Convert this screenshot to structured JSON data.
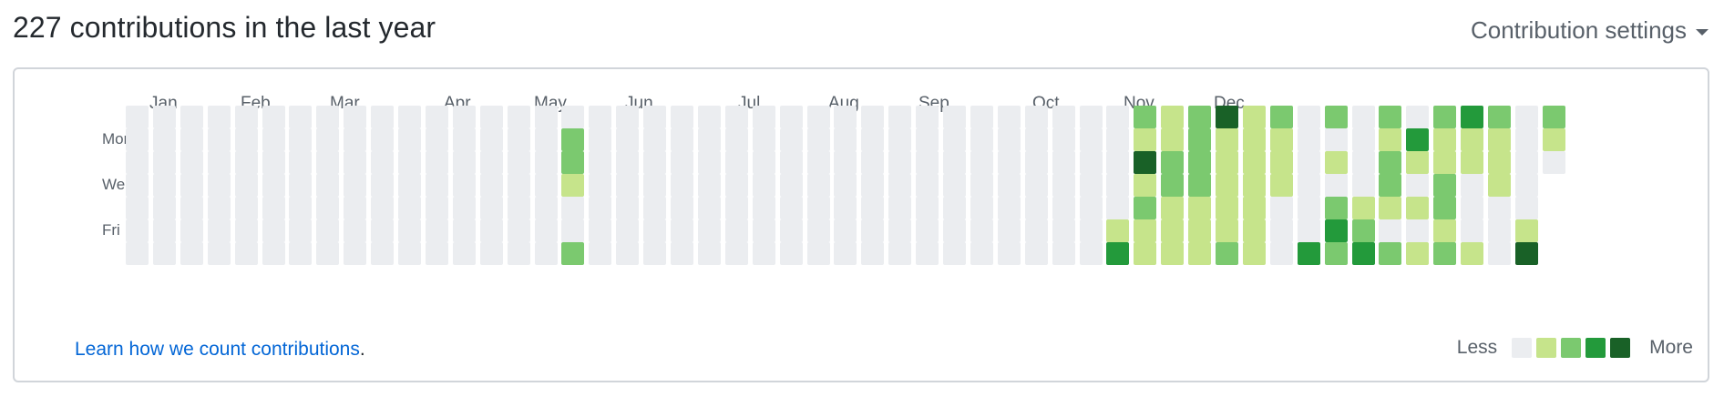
{
  "header": {
    "title": "227 contributions in the last year",
    "settings_label": "Contribution settings"
  },
  "calendar": {
    "months": [
      "Jan",
      "Feb",
      "Mar",
      "Apr",
      "May",
      "Jun",
      "Jul",
      "Aug",
      "Sep",
      "Oct",
      "Nov",
      "Dec"
    ],
    "day_labels": [
      "Mon",
      "Wed",
      "Fri"
    ],
    "level_colors": [
      "#ebedf0",
      "#c6e48b",
      "#7bc96f",
      "#239a3b",
      "#196127"
    ],
    "weeks": [
      [
        0,
        0,
        0,
        0,
        0,
        0,
        0
      ],
      [
        0,
        0,
        0,
        0,
        0,
        0,
        0
      ],
      [
        0,
        0,
        0,
        0,
        0,
        0,
        0
      ],
      [
        0,
        0,
        0,
        0,
        0,
        0,
        0
      ],
      [
        0,
        0,
        0,
        0,
        0,
        0,
        0
      ],
      [
        0,
        0,
        0,
        0,
        0,
        0,
        0
      ],
      [
        0,
        0,
        0,
        0,
        0,
        0,
        0
      ],
      [
        0,
        0,
        0,
        0,
        0,
        0,
        0
      ],
      [
        0,
        0,
        0,
        0,
        0,
        0,
        0
      ],
      [
        0,
        0,
        0,
        0,
        0,
        0,
        0
      ],
      [
        0,
        0,
        0,
        0,
        0,
        0,
        0
      ],
      [
        0,
        0,
        0,
        0,
        0,
        0,
        0
      ],
      [
        0,
        0,
        0,
        0,
        0,
        0,
        0
      ],
      [
        0,
        0,
        0,
        0,
        0,
        0,
        0
      ],
      [
        0,
        0,
        0,
        0,
        0,
        0,
        0
      ],
      [
        0,
        0,
        0,
        0,
        0,
        0,
        0
      ],
      [
        0,
        2,
        2,
        1,
        0,
        0,
        2
      ],
      [
        0,
        0,
        0,
        0,
        0,
        0,
        0
      ],
      [
        0,
        0,
        0,
        0,
        0,
        0,
        0
      ],
      [
        0,
        0,
        0,
        0,
        0,
        0,
        0
      ],
      [
        0,
        0,
        0,
        0,
        0,
        0,
        0
      ],
      [
        0,
        0,
        0,
        0,
        0,
        0,
        0
      ],
      [
        0,
        0,
        0,
        0,
        0,
        0,
        0
      ],
      [
        0,
        0,
        0,
        0,
        0,
        0,
        0
      ],
      [
        0,
        0,
        0,
        0,
        0,
        0,
        0
      ],
      [
        0,
        0,
        0,
        0,
        0,
        0,
        0
      ],
      [
        0,
        0,
        0,
        0,
        0,
        0,
        0
      ],
      [
        0,
        0,
        0,
        0,
        0,
        0,
        0
      ],
      [
        0,
        0,
        0,
        0,
        0,
        0,
        0
      ],
      [
        0,
        0,
        0,
        0,
        0,
        0,
        0
      ],
      [
        0,
        0,
        0,
        0,
        0,
        0,
        0
      ],
      [
        0,
        0,
        0,
        0,
        0,
        0,
        0
      ],
      [
        0,
        0,
        0,
        0,
        0,
        0,
        0
      ],
      [
        0,
        0,
        0,
        0,
        0,
        0,
        0
      ],
      [
        0,
        0,
        0,
        0,
        0,
        0,
        0
      ],
      [
        0,
        0,
        0,
        0,
        0,
        0,
        0
      ],
      [
        0,
        0,
        0,
        0,
        0,
        1,
        3
      ],
      [
        2,
        1,
        4,
        1,
        2,
        1,
        1
      ],
      [
        1,
        1,
        2,
        2,
        1,
        1,
        1
      ],
      [
        2,
        2,
        2,
        2,
        1,
        1,
        1
      ],
      [
        4,
        1,
        1,
        1,
        1,
        1,
        2
      ],
      [
        1,
        1,
        1,
        1,
        1,
        1,
        1
      ],
      [
        2,
        1,
        1,
        1,
        0,
        0,
        0
      ],
      [
        0,
        0,
        0,
        0,
        0,
        0,
        3
      ],
      [
        2,
        0,
        1,
        0,
        2,
        3,
        2
      ],
      [
        0,
        0,
        0,
        0,
        1,
        2,
        3
      ],
      [
        2,
        1,
        2,
        2,
        1,
        0,
        2
      ],
      [
        0,
        3,
        1,
        0,
        1,
        0,
        1
      ],
      [
        2,
        1,
        1,
        2,
        2,
        1,
        2
      ],
      [
        3,
        1,
        1,
        0,
        0,
        0,
        1
      ],
      [
        2,
        1,
        1,
        1,
        0,
        0,
        0
      ],
      [
        0,
        0,
        0,
        0,
        0,
        1,
        4
      ],
      [
        2,
        1,
        0
      ]
    ]
  },
  "footer": {
    "learn_text": "Learn how we count contributions",
    "learn_punct": ".",
    "legend_less": "Less",
    "legend_more": "More"
  }
}
